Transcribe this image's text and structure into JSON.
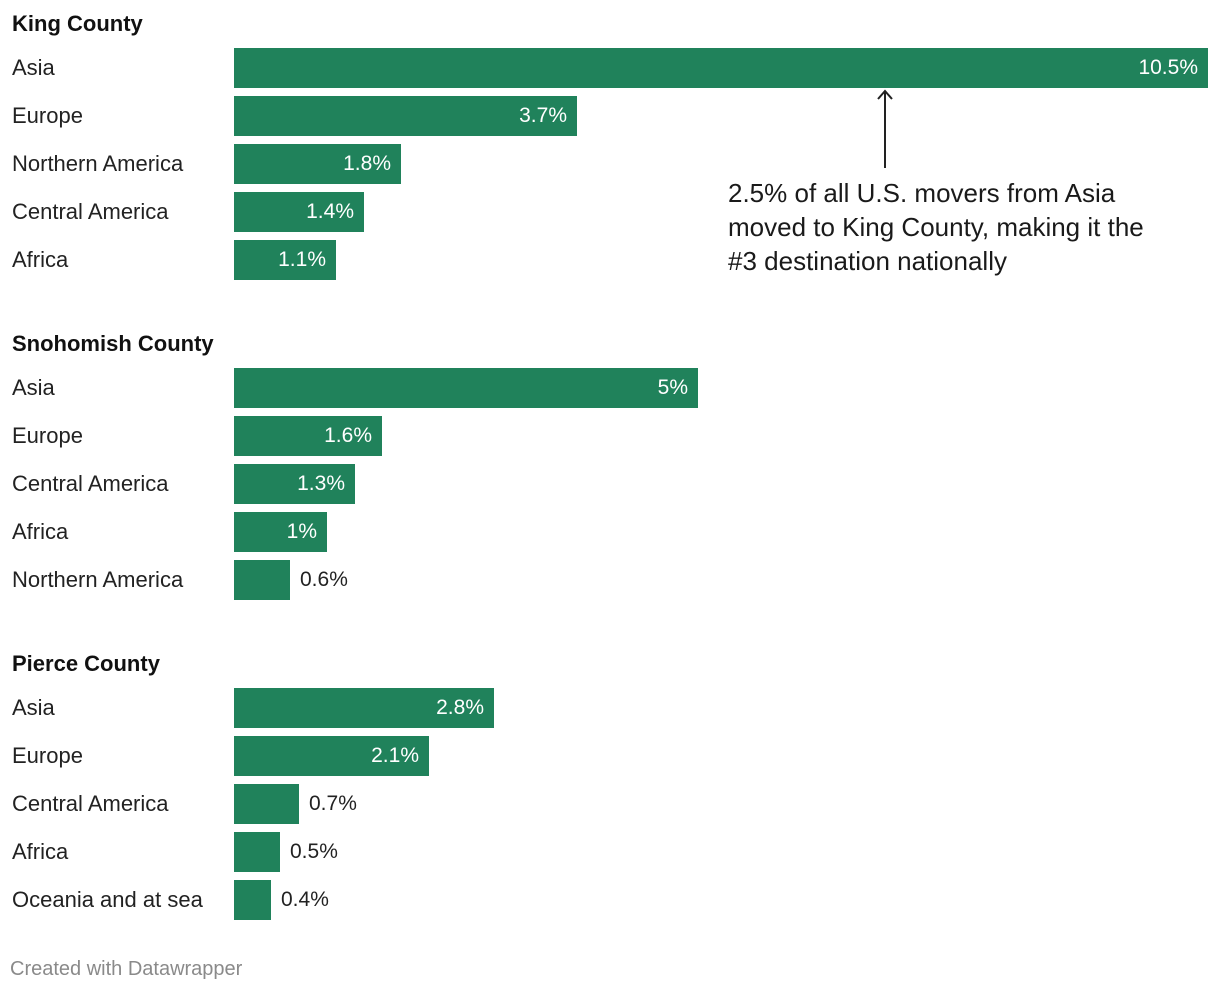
{
  "chart_data": {
    "type": "bar",
    "orientation": "horizontal",
    "bar_color": "#20825b",
    "value_max": 10.5,
    "groups": [
      {
        "title": "King County",
        "categories": [
          "Asia",
          "Europe",
          "Northern America",
          "Central America",
          "Africa"
        ],
        "values": [
          10.5,
          3.7,
          1.8,
          1.4,
          1.1
        ],
        "labels": [
          "10.5%",
          "3.7%",
          "1.8%",
          "1.4%",
          "1.1%"
        ]
      },
      {
        "title": "Snohomish County",
        "categories": [
          "Asia",
          "Europe",
          "Central America",
          "Africa",
          "Northern America"
        ],
        "values": [
          5,
          1.6,
          1.3,
          1,
          0.6
        ],
        "labels": [
          "5%",
          "1.6%",
          "1.3%",
          "1%",
          "0.6%"
        ]
      },
      {
        "title": "Pierce County",
        "categories": [
          "Asia",
          "Europe",
          "Central America",
          "Africa",
          "Oceania and at sea"
        ],
        "values": [
          2.8,
          2.1,
          0.7,
          0.5,
          0.4
        ],
        "labels": [
          "2.8%",
          "2.1%",
          "0.7%",
          "0.5%",
          "0.4%"
        ]
      }
    ],
    "annotation": {
      "text": "2.5% of all U.S. movers from Asia moved to King County, making it the #3 destination nationally"
    }
  },
  "footer": "Created with Datawrapper"
}
